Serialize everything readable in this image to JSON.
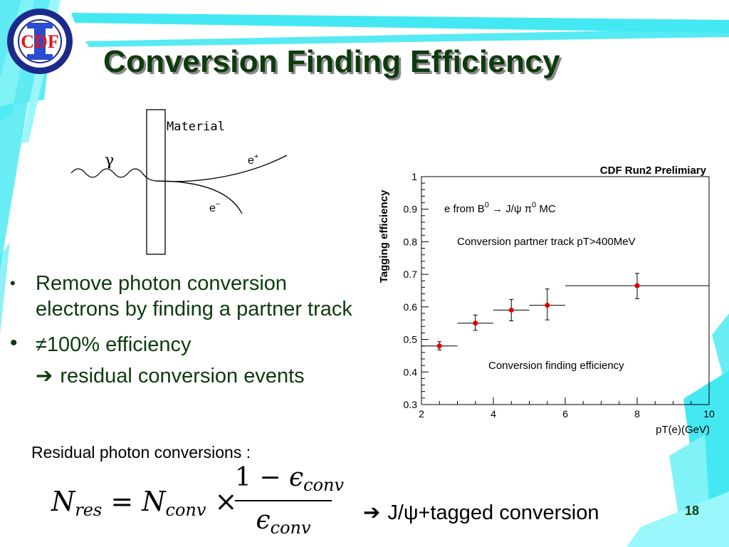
{
  "slide": {
    "title": "Conversion Finding Efficiency",
    "page_number": "18",
    "colors": {
      "title": "#0d3b0d",
      "accent_stripe": "#44e8f2",
      "marker": "#e00000"
    }
  },
  "logo": {
    "text": "CDF"
  },
  "diagram": {
    "material_label": "Material",
    "photon_label": "γ",
    "positron_label": "e",
    "positron_sup": "+",
    "electron_label": "e",
    "electron_sup": "−"
  },
  "bullets": [
    {
      "text": "Remove photon conversion electrons by finding a partner track"
    },
    {
      "symbol": "≠",
      "text": "100% efficiency"
    }
  ],
  "sub_bullet": {
    "icon": "right-arrow-icon",
    "arrow": "➔",
    "text": "residual conversion events"
  },
  "residual": {
    "label": "Residual photon conversions :",
    "formula": {
      "lhs_N": "N",
      "lhs_sub": "res",
      "eq": "=",
      "rhs_N": "N",
      "rhs_sub": "conv",
      "times": "×",
      "num_one": "1",
      "minus": "−",
      "eps": "ϵ",
      "eps_sub": "conv"
    }
  },
  "tagged": {
    "icon": "right-arrow-icon",
    "arrow": "➔",
    "text": "J/ψ+tagged conversion"
  },
  "chart_data": {
    "type": "scatter",
    "title": "CDF Run2 Prelimiary",
    "xlabel": "pT(e)(GeV)",
    "ylabel": "Tagging efficiency",
    "xlim": [
      2,
      10
    ],
    "ylim": [
      0.3,
      1
    ],
    "x_ticks": [
      2,
      4,
      6,
      8,
      10
    ],
    "y_ticks": [
      0.3,
      0.4,
      0.5,
      0.6,
      0.7,
      0.8,
      0.9,
      1
    ],
    "y_tick_labels": [
      "0.3",
      "0.4",
      "0.5",
      "0.6",
      "0.7",
      "0.8",
      "0.9",
      "1"
    ],
    "grid": false,
    "annotations": [
      "e  from  B0 → J/ψ π0  MC",
      "Conversion partner track pT>400MeV",
      "Conversion finding efficiency"
    ],
    "series": [
      {
        "points": [
          {
            "x": 2.5,
            "y": 0.48,
            "xerr": [
              2,
              3
            ],
            "yerr": [
              0.468,
              0.493
            ]
          },
          {
            "x": 3.5,
            "y": 0.55,
            "xerr": [
              3,
              4
            ],
            "yerr": [
              0.528,
              0.575
            ]
          },
          {
            "x": 4.5,
            "y": 0.59,
            "xerr": [
              4,
              5
            ],
            "yerr": [
              0.557,
              0.623
            ]
          },
          {
            "x": 5.5,
            "y": 0.605,
            "xerr": [
              5,
              6
            ],
            "yerr": [
              0.56,
              0.655
            ]
          },
          {
            "x": 8,
            "y": 0.665,
            "xerr": [
              6,
              10
            ],
            "yerr": [
              0.625,
              0.703
            ]
          }
        ]
      }
    ]
  }
}
